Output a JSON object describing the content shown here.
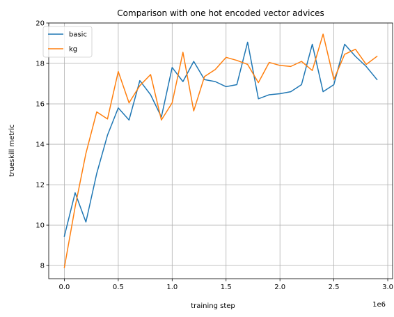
{
  "chart_data": {
    "type": "line",
    "title": "Comparison with one hot encoded vector advices",
    "xlabel": "training step",
    "ylabel": "trueskill metric",
    "x_offset_label": "1e6",
    "xlim": [
      -0.145,
      3.045
    ],
    "ylim": [
      7.35,
      20.0
    ],
    "xticks": [
      0.0,
      0.5,
      1.0,
      1.5,
      2.0,
      2.5,
      3.0
    ],
    "xtick_labels": [
      "0.0",
      "0.5",
      "1.0",
      "1.5",
      "2.0",
      "2.5",
      "3.0"
    ],
    "yticks": [
      8,
      10,
      12,
      14,
      16,
      18,
      20
    ],
    "ytick_labels": [
      "8",
      "10",
      "12",
      "14",
      "16",
      "18",
      "20"
    ],
    "grid": true,
    "legend_position": "top-left",
    "x": [
      0.0,
      0.1,
      0.2,
      0.3,
      0.4,
      0.5,
      0.6,
      0.7,
      0.8,
      0.9,
      1.0,
      1.1,
      1.2,
      1.3,
      1.4,
      1.5,
      1.6,
      1.7,
      1.8,
      1.9,
      2.0,
      2.1,
      2.2,
      2.3,
      2.4,
      2.5,
      2.6,
      2.7,
      2.8,
      2.9
    ],
    "series": [
      {
        "name": "basic",
        "color": "#1f77b4",
        "values": [
          9.45,
          11.6,
          10.15,
          12.55,
          14.45,
          15.8,
          15.2,
          17.15,
          16.45,
          15.35,
          17.8,
          17.1,
          18.1,
          17.2,
          17.1,
          16.85,
          16.95,
          19.05,
          16.25,
          16.45,
          16.5,
          16.6,
          16.95,
          18.95,
          16.6,
          16.95,
          18.95,
          18.35,
          17.85,
          17.2
        ]
      },
      {
        "name": "kg",
        "color": "#ff7f0e",
        "values": [
          7.9,
          10.9,
          13.55,
          15.6,
          15.25,
          17.6,
          16.05,
          16.9,
          17.45,
          15.2,
          16.05,
          18.55,
          15.65,
          17.35,
          17.7,
          18.3,
          18.15,
          17.95,
          17.05,
          18.05,
          17.9,
          17.85,
          18.1,
          17.65,
          19.45,
          17.2,
          18.45,
          18.7,
          17.95,
          18.35
        ]
      }
    ]
  }
}
